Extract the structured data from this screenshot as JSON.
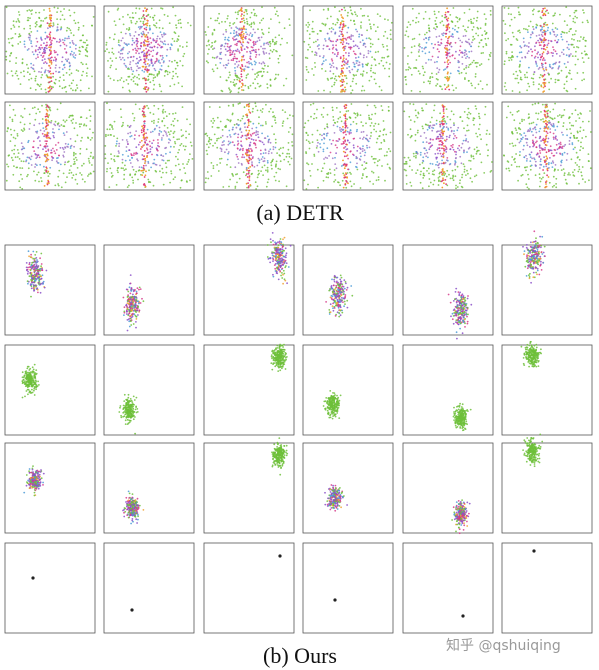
{
  "captions": {
    "a": "(a) DETR",
    "b": "(b) Ours"
  },
  "watermark": "知乎 @qshuiqing"
}
